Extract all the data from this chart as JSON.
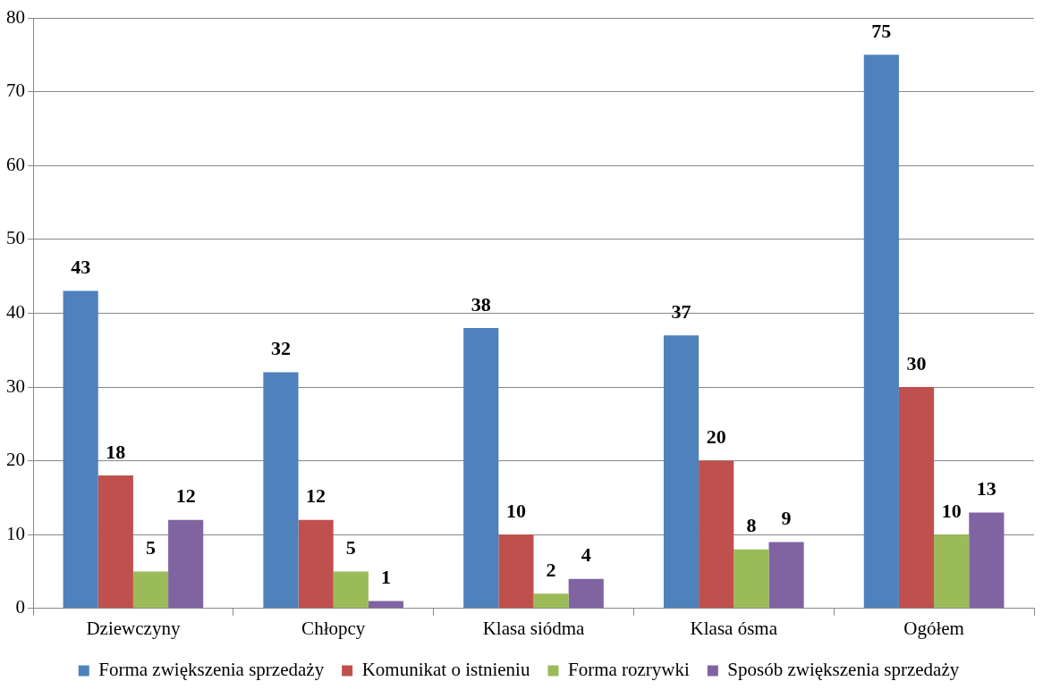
{
  "chart_data": {
    "type": "bar",
    "categories": [
      "Dziewczyny",
      "Chłopcy",
      "Klasa siódma",
      "Klasa ósma",
      "Ogółem"
    ],
    "series": [
      {
        "name": "Forma zwiększenia sprzedaży",
        "color": "#4f81bd",
        "values": [
          43,
          32,
          38,
          37,
          75
        ]
      },
      {
        "name": "Komunikat o istnieniu",
        "color": "#c0504d",
        "values": [
          18,
          12,
          10,
          20,
          30
        ]
      },
      {
        "name": "Forma rozrywki",
        "color": "#9bbb59",
        "values": [
          5,
          5,
          2,
          8,
          10
        ]
      },
      {
        "name": "Sposób zwiększenia sprzedaży",
        "color": "#8064a2",
        "values": [
          12,
          1,
          4,
          9,
          13
        ]
      }
    ],
    "ylim": [
      0,
      80
    ],
    "yticks": [
      0,
      10,
      20,
      30,
      40,
      50,
      60,
      70,
      80
    ],
    "grid": "y",
    "legend": "bottom",
    "data_labels": true
  }
}
